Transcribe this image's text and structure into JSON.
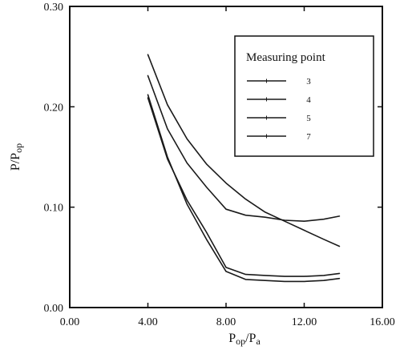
{
  "chart_data": {
    "type": "line",
    "xlabel": "Pop/Pa",
    "xlabel_parts": [
      "P",
      "op",
      "/P",
      "a"
    ],
    "ylabel": "P/Pop",
    "ylabel_parts": [
      "P/P",
      "op"
    ],
    "xlim": [
      0,
      16
    ],
    "ylim": [
      0,
      0.3
    ],
    "xticks": [
      0,
      4,
      8,
      12,
      16
    ],
    "xtick_labels": [
      "0.00",
      "4.00",
      "8.00",
      "12.00",
      "16.00"
    ],
    "yticks": [
      0,
      0.1,
      0.2,
      0.3
    ],
    "ytick_labels": [
      "0.00",
      "0.10",
      "0.20",
      "0.30"
    ],
    "grid": false,
    "legend": {
      "title": "Measuring point",
      "placement": "top-right"
    },
    "series": [
      {
        "name": "3",
        "x": [
          4,
          5,
          6,
          7,
          8,
          9,
          10,
          11,
          12,
          13,
          13.8
        ],
        "y": [
          0.252,
          0.202,
          0.168,
          0.143,
          0.124,
          0.108,
          0.095,
          0.086,
          0.077,
          0.068,
          0.061
        ]
      },
      {
        "name": "4",
        "x": [
          4,
          5,
          6,
          7,
          8,
          9,
          10,
          11,
          12,
          13,
          13.8
        ],
        "y": [
          0.231,
          0.178,
          0.144,
          0.12,
          0.098,
          0.092,
          0.09,
          0.087,
          0.086,
          0.088,
          0.091
        ]
      },
      {
        "name": "5",
        "x": [
          4,
          5,
          6,
          7,
          8,
          9,
          10,
          11,
          12,
          13,
          13.8
        ],
        "y": [
          0.212,
          0.15,
          0.103,
          0.068,
          0.036,
          0.028,
          0.027,
          0.026,
          0.026,
          0.027,
          0.029
        ]
      },
      {
        "name": "7",
        "x": [
          4,
          5,
          6,
          7,
          8,
          9,
          10,
          11,
          12,
          13,
          13.8
        ],
        "y": [
          0.209,
          0.148,
          0.107,
          0.075,
          0.04,
          0.033,
          0.032,
          0.031,
          0.031,
          0.032,
          0.034
        ]
      }
    ]
  }
}
